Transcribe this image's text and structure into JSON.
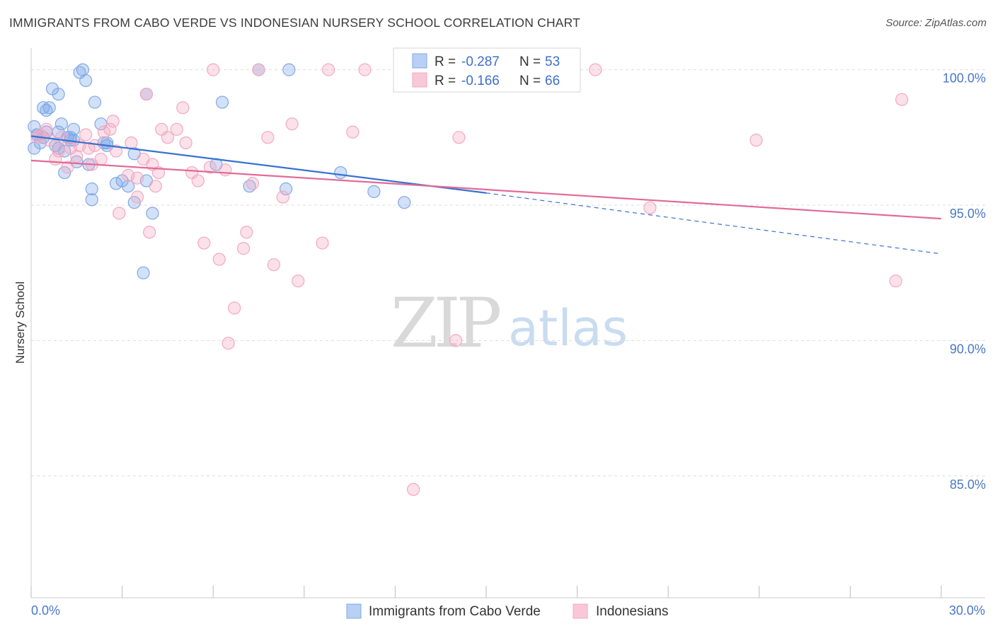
{
  "header": {
    "title": "IMMIGRANTS FROM CABO VERDE VS INDONESIAN NURSERY SCHOOL CORRELATION CHART",
    "source": "Source: ZipAtlas.com"
  },
  "watermark": {
    "zip": "ZIP",
    "atlas": "atlas"
  },
  "legend_box": {
    "rows": [
      {
        "r_label": "R = ",
        "r_value": "-0.287",
        "n_label": "N = ",
        "n_value": "53"
      },
      {
        "r_label": "R = ",
        "r_value": "-0.166",
        "n_label": "N = ",
        "n_value": "66"
      }
    ]
  },
  "chart_data": {
    "type": "scatter",
    "title": "IMMIGRANTS FROM CABO VERDE VS INDONESIAN NURSERY SCHOOL CORRELATION CHART",
    "xlabel": "",
    "ylabel": "Nursery School",
    "xlim": [
      0,
      30
    ],
    "ylim": [
      80.5,
      100.8
    ],
    "x_tick_labels": [
      "0.0%",
      "30.0%"
    ],
    "y_ticks": [
      85,
      90,
      95,
      100
    ],
    "y_tick_labels": [
      "85.0%",
      "90.0%",
      "95.0%",
      "100.0%"
    ],
    "colors": {
      "blue": "#7fa8e8",
      "blue_line": "#3572d4",
      "pink": "#f4a8c0",
      "pink_line": "#e36a97"
    },
    "series": [
      {
        "name": "Immigrants from Cabo Verde",
        "color": "blue",
        "trend": {
          "x": [
            0,
            15
          ],
          "y": [
            97.55,
            95.45
          ],
          "dashed_to": [
            30,
            93.2
          ]
        },
        "points": [
          [
            0.1,
            97.9
          ],
          [
            0.1,
            97.1
          ],
          [
            0.2,
            97.6
          ],
          [
            0.3,
            97.3
          ],
          [
            0.4,
            97.5
          ],
          [
            0.4,
            98.6
          ],
          [
            0.5,
            97.7
          ],
          [
            0.6,
            98.6
          ],
          [
            0.7,
            99.3
          ],
          [
            0.8,
            97.2
          ],
          [
            0.9,
            99.1
          ],
          [
            0.9,
            97.1
          ],
          [
            1.0,
            98.0
          ],
          [
            1.1,
            97.0
          ],
          [
            1.1,
            96.2
          ],
          [
            1.2,
            97.5
          ],
          [
            1.3,
            97.5
          ],
          [
            1.4,
            97.8
          ],
          [
            1.5,
            96.6
          ],
          [
            1.6,
            99.9
          ],
          [
            1.7,
            100.0
          ],
          [
            1.8,
            99.6
          ],
          [
            1.9,
            96.5
          ],
          [
            2.0,
            95.6
          ],
          [
            2.0,
            95.2
          ],
          [
            2.1,
            98.8
          ],
          [
            2.3,
            98.0
          ],
          [
            2.4,
            97.3
          ],
          [
            2.5,
            97.3
          ],
          [
            2.8,
            95.8
          ],
          [
            3.0,
            95.9
          ],
          [
            3.2,
            95.7
          ],
          [
            3.4,
            95.1
          ],
          [
            3.4,
            96.9
          ],
          [
            3.8,
            99.1
          ],
          [
            3.8,
            95.9
          ],
          [
            4.0,
            94.7
          ],
          [
            3.7,
            92.5
          ],
          [
            6.1,
            96.5
          ],
          [
            6.3,
            98.8
          ],
          [
            7.2,
            95.7
          ],
          [
            7.5,
            100.0
          ],
          [
            8.4,
            95.6
          ],
          [
            8.5,
            100.0
          ],
          [
            10.2,
            96.2
          ],
          [
            11.3,
            95.5
          ],
          [
            12.3,
            95.1
          ],
          [
            0.2,
            97.6
          ],
          [
            0.9,
            97.7
          ],
          [
            1.3,
            97.4
          ],
          [
            0.5,
            98.5
          ],
          [
            2.5,
            97.2
          ],
          [
            1.4,
            97.4
          ]
        ]
      },
      {
        "name": "Indonesians",
        "color": "pink",
        "trend": {
          "x": [
            0,
            30
          ],
          "y": [
            96.65,
            94.5
          ]
        },
        "points": [
          [
            0.2,
            97.5
          ],
          [
            0.3,
            97.6
          ],
          [
            0.5,
            97.8
          ],
          [
            0.6,
            97.4
          ],
          [
            0.8,
            96.7
          ],
          [
            0.9,
            97.0
          ],
          [
            1.0,
            97.5
          ],
          [
            1.2,
            96.4
          ],
          [
            1.3,
            97.1
          ],
          [
            1.5,
            96.8
          ],
          [
            1.6,
            97.2
          ],
          [
            1.8,
            97.6
          ],
          [
            1.9,
            97.1
          ],
          [
            2.1,
            97.2
          ],
          [
            2.3,
            96.7
          ],
          [
            2.4,
            97.7
          ],
          [
            2.6,
            97.8
          ],
          [
            2.7,
            98.1
          ],
          [
            2.8,
            97.0
          ],
          [
            2.9,
            94.7
          ],
          [
            3.2,
            96.1
          ],
          [
            3.3,
            97.3
          ],
          [
            3.5,
            95.3
          ],
          [
            3.7,
            96.7
          ],
          [
            3.8,
            99.1
          ],
          [
            3.9,
            94.0
          ],
          [
            4.1,
            95.7
          ],
          [
            4.2,
            96.2
          ],
          [
            4.3,
            97.8
          ],
          [
            4.5,
            97.5
          ],
          [
            4.8,
            97.8
          ],
          [
            5.0,
            98.6
          ],
          [
            5.1,
            97.3
          ],
          [
            5.3,
            96.2
          ],
          [
            5.5,
            95.9
          ],
          [
            5.7,
            93.6
          ],
          [
            5.9,
            96.4
          ],
          [
            6.0,
            100.0
          ],
          [
            6.2,
            93.0
          ],
          [
            6.4,
            96.3
          ],
          [
            6.5,
            89.9
          ],
          [
            6.7,
            91.2
          ],
          [
            7.0,
            93.4
          ],
          [
            7.1,
            94.0
          ],
          [
            7.3,
            95.8
          ],
          [
            7.5,
            100.0
          ],
          [
            7.8,
            97.5
          ],
          [
            8.0,
            92.8
          ],
          [
            8.3,
            95.3
          ],
          [
            8.6,
            98.0
          ],
          [
            8.8,
            92.2
          ],
          [
            9.6,
            93.6
          ],
          [
            9.8,
            100.0
          ],
          [
            10.6,
            97.7
          ],
          [
            11.0,
            100.0
          ],
          [
            12.6,
            84.5
          ],
          [
            14.0,
            90.0
          ],
          [
            14.1,
            97.5
          ],
          [
            18.6,
            100.0
          ],
          [
            20.4,
            94.9
          ],
          [
            23.9,
            97.4
          ],
          [
            28.5,
            92.2
          ],
          [
            28.7,
            98.9
          ],
          [
            2.0,
            96.5
          ],
          [
            4.0,
            96.5
          ],
          [
            3.5,
            96.0
          ]
        ]
      }
    ]
  },
  "bottom_legend": [
    {
      "label": "Immigrants from Cabo Verde",
      "color": "blue"
    },
    {
      "label": "Indonesians",
      "color": "pink"
    }
  ]
}
